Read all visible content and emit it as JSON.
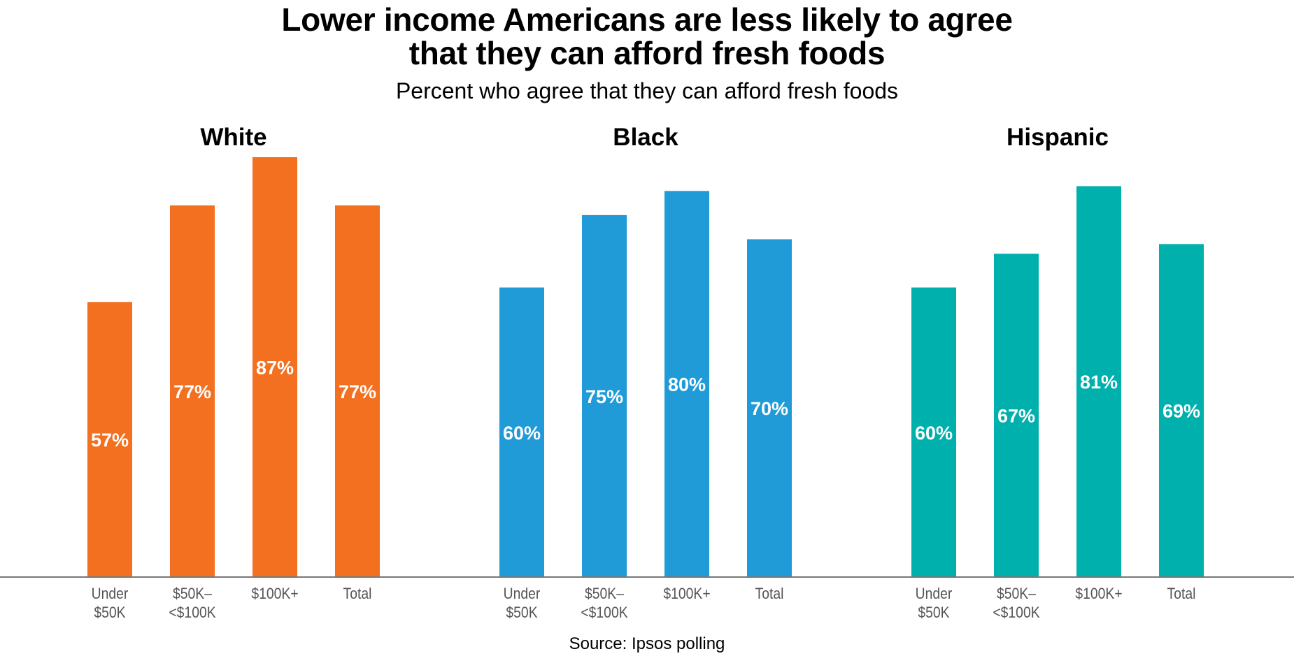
{
  "title_line1": "Lower income Americans are less likely to agree",
  "title_line2": "that they can afford fresh foods",
  "subtitle": "Percent who agree that they can afford fresh foods",
  "source": "Source: Ipsos polling",
  "chart_data": {
    "type": "bar",
    "ylabel": "",
    "xlabel": "",
    "ylim": [
      0,
      87
    ],
    "categories": [
      [
        "Under",
        "$50K"
      ],
      [
        "$50K–",
        "<$100K"
      ],
      [
        "$100K+"
      ],
      [
        "Total"
      ]
    ],
    "panels": [
      {
        "name": "White",
        "color": "#f37021",
        "values": [
          57,
          77,
          87,
          77
        ],
        "labels": [
          "57%",
          "77%",
          "87%",
          "77%"
        ]
      },
      {
        "name": "Black",
        "color": "#219bd7",
        "values": [
          60,
          75,
          80,
          70
        ],
        "labels": [
          "60%",
          "75%",
          "80%",
          "70%"
        ]
      },
      {
        "name": "Hispanic",
        "color": "#00b0ad",
        "values": [
          60,
          67,
          81,
          69
        ],
        "labels": [
          "60%",
          "67%",
          "81%",
          "69%"
        ]
      }
    ]
  }
}
